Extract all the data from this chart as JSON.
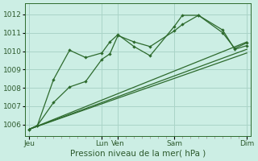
{
  "xlabel": "Pression niveau de la mer( hPa )",
  "background_color": "#cceee4",
  "grid_color": "#aad4c8",
  "line_color": "#2d6a2d",
  "ylim": [
    1005.4,
    1012.6
  ],
  "yticks": [
    1006,
    1007,
    1008,
    1009,
    1010,
    1011,
    1012
  ],
  "x_tick_positions": [
    0,
    9,
    11,
    18,
    27
  ],
  "x_tick_labels": [
    "Jeu",
    "Lun",
    "Ven",
    "Sam",
    "Dim"
  ],
  "line1_x": [
    0,
    1,
    3,
    5,
    7,
    9,
    10,
    11,
    13,
    15,
    18,
    19,
    21,
    24,
    25.5,
    27
  ],
  "line1_y": [
    1005.75,
    1005.95,
    1007.2,
    1008.05,
    1008.35,
    1009.55,
    1009.85,
    1010.85,
    1010.5,
    1010.25,
    1011.1,
    1011.45,
    1011.95,
    1011.15,
    1010.1,
    1010.3
  ],
  "line2_x": [
    0,
    1,
    3,
    5,
    7,
    9,
    10,
    11,
    13,
    15,
    18,
    19,
    21,
    24,
    25.5,
    27
  ],
  "line2_y": [
    1005.75,
    1005.95,
    1008.45,
    1010.05,
    1009.65,
    1009.9,
    1010.5,
    1010.9,
    1010.25,
    1009.75,
    1011.35,
    1011.95,
    1011.95,
    1011.0,
    1010.15,
    1010.45
  ],
  "line3_x": [
    0,
    27
  ],
  "line3_y": [
    1005.75,
    1010.5
  ],
  "line4_x": [
    0,
    27
  ],
  "line4_y": [
    1005.75,
    1009.9
  ],
  "line5_x": [
    0,
    27
  ],
  "line5_y": [
    1005.75,
    1010.1
  ]
}
